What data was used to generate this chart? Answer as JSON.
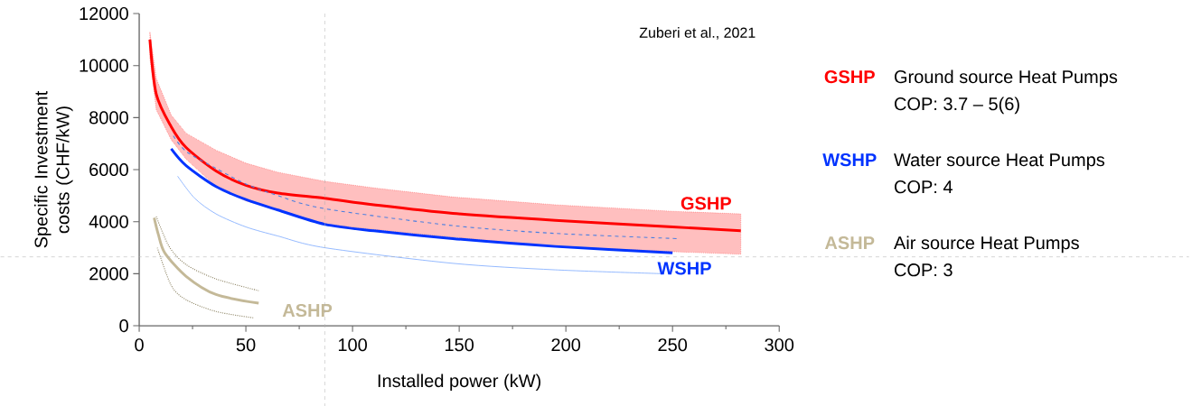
{
  "chart_data": {
    "type": "line",
    "xlabel": "Installed power (kW)",
    "ylabel": "Specific Investment costs (CHF/kW)",
    "xlim": [
      0,
      300
    ],
    "xticks": [
      0,
      50,
      100,
      150,
      200,
      250,
      300
    ],
    "ylim": [
      0,
      12000
    ],
    "yticks": [
      0,
      2000,
      4000,
      6000,
      8000,
      10000,
      12000
    ],
    "legend": "right",
    "annotations": [
      "Zuberi et al., 2021",
      "Ground source Heat Pumps",
      "COP: 3.7 – 5(6)",
      "Water source Heat Pumps",
      "COP: 4",
      "Air source Heat Pumps",
      "COP: 3"
    ],
    "ref_lines": [
      {
        "axis": "x",
        "value": 87,
        "color": "#b0b0b0",
        "line_style": "dashed"
      },
      {
        "axis": "y",
        "value": 2650,
        "color": "#b0b0b0",
        "line_style": "dashed"
      }
    ],
    "series": [
      {
        "name": "GSHP",
        "color": "#ff0000",
        "x": [
          5,
          8,
          15,
          22,
          36,
          50,
          65,
          87,
          110,
          147,
          195,
          250,
          282
        ],
        "values": [
          11000,
          8900,
          7650,
          6850,
          5950,
          5400,
          5100,
          4900,
          4650,
          4320,
          4050,
          3800,
          3650
        ],
        "lower": [
          10300,
          8300,
          7150,
          6400,
          5350,
          4800,
          4450,
          3900,
          3700,
          3400,
          3050,
          2850,
          2750
        ],
        "upper": [
          11300,
          9500,
          8100,
          7400,
          6750,
          6250,
          5900,
          5550,
          5300,
          4950,
          4650,
          4400,
          4300
        ]
      },
      {
        "color": "#4a7fe0",
        "line_style": "dashed",
        "x": [
          16,
          22,
          36,
          50,
          65,
          87,
          147,
          195,
          252
        ],
        "values": [
          7300,
          6700,
          6050,
          5450,
          5000,
          4500,
          3850,
          3550,
          3350
        ]
      },
      {
        "color": "#7aa8ff",
        "x": [
          18,
          26,
          36,
          50,
          65,
          87,
          147,
          195,
          246
        ],
        "values": [
          5750,
          4900,
          4300,
          3800,
          3450,
          3000,
          2400,
          2150,
          2000
        ]
      },
      {
        "name": "WSHP",
        "color": "#0033ff",
        "x": [
          15,
          22,
          36,
          50,
          65,
          87,
          110,
          147,
          195,
          250
        ],
        "values": [
          6800,
          6150,
          5350,
          4850,
          4450,
          3900,
          3650,
          3350,
          3050,
          2800
        ]
      },
      {
        "color": "#8a8060",
        "line_style": "dotted",
        "x": [
          8,
          14,
          22,
          36,
          56
        ],
        "values": [
          4200,
          3050,
          2350,
          1800,
          1350
        ]
      },
      {
        "color": "#8a8060",
        "line_style": "dotted",
        "x": [
          8.5,
          15,
          22,
          36,
          54
        ],
        "values": [
          3000,
          1550,
          1000,
          550,
          300
        ]
      },
      {
        "name": "ASHP",
        "color": "#c4b998",
        "x": [
          7,
          9,
          12,
          22,
          36,
          56
        ],
        "values": [
          4150,
          3500,
          2800,
          1900,
          1200,
          870
        ]
      }
    ]
  }
}
